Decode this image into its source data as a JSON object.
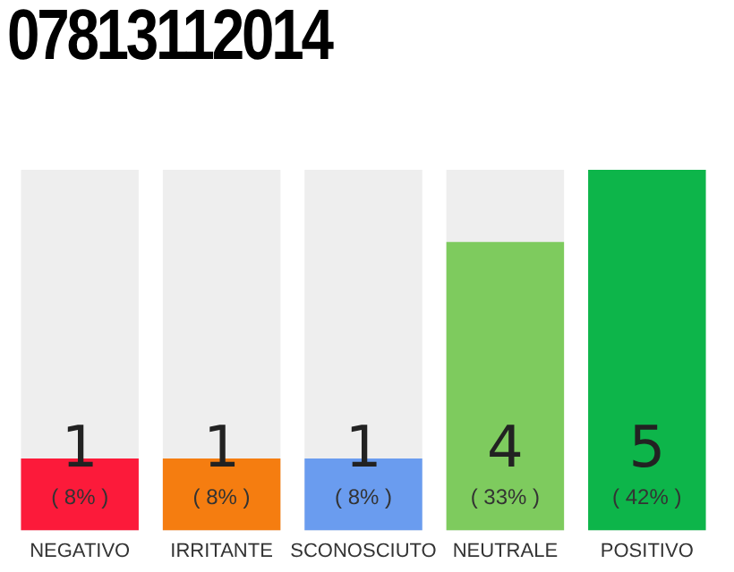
{
  "chart_data": {
    "type": "bar",
    "title": "07813112014",
    "categories": [
      "NEGATIVO",
      "IRRITANTE",
      "SCONOSCIUTO",
      "NEUTRALE",
      "POSITIVO"
    ],
    "values": [
      1,
      1,
      1,
      4,
      5
    ],
    "colors": [
      "#fc1a3a",
      "#f57d10",
      "#6a9cef",
      "#7ecb5e",
      "#0db54a"
    ],
    "tick_labels": "x",
    "grid": false,
    "legend": false,
    "data_labels": true,
    "annotations": [
      "( 8% )",
      "( 8% )",
      "( 8% )",
      "( 33% )",
      "( 42% )"
    ]
  }
}
